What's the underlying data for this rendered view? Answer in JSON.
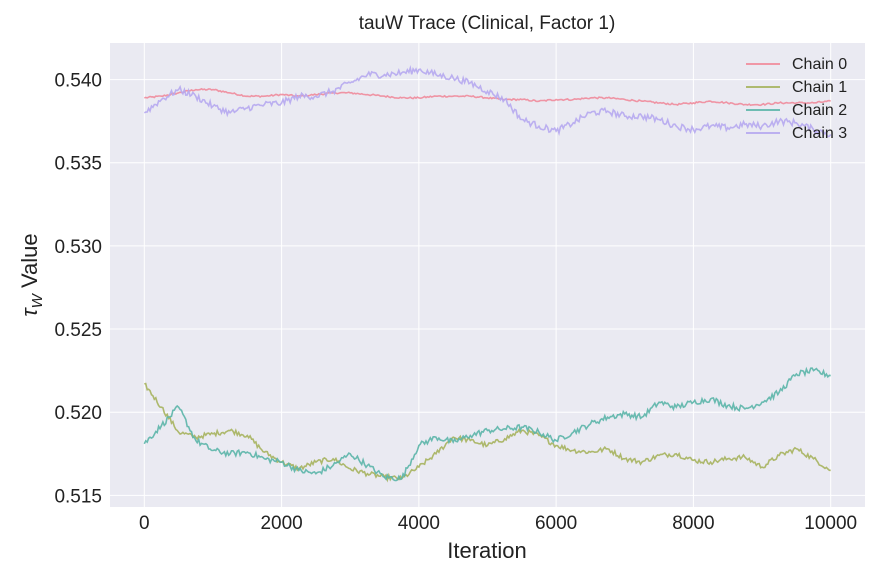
{
  "chart_data": {
    "type": "line",
    "title": "tauW Trace (Clinical, Factor 1)",
    "xlabel": "Iteration",
    "ylabel_symbol": "τ",
    "ylabel_subscript": "W",
    "ylabel_text": " Value",
    "xlim": [
      -500,
      10500
    ],
    "ylim": [
      0.5143,
      0.5422
    ],
    "xticks": [
      0,
      2000,
      4000,
      6000,
      8000,
      10000
    ],
    "xtick_labels": [
      "0",
      "2000",
      "4000",
      "6000",
      "8000",
      "10000"
    ],
    "yticks": [
      0.515,
      0.52,
      0.525,
      0.53,
      0.535,
      0.54
    ],
    "ytick_labels": [
      "0.515",
      "0.520",
      "0.525",
      "0.530",
      "0.535",
      "0.540"
    ],
    "grid": true,
    "legend_position": "top-right",
    "background": "#eaeaf2",
    "series": [
      {
        "name": "Chain 0",
        "color": "#f08b9b",
        "x": [
          0,
          250,
          500,
          750,
          1000,
          1250,
          1500,
          1750,
          2000,
          2250,
          2500,
          2750,
          3000,
          3250,
          3500,
          3750,
          4000,
          4250,
          4500,
          4750,
          5000,
          5250,
          5500,
          5750,
          6000,
          6250,
          6500,
          6750,
          7000,
          7250,
          7500,
          7750,
          8000,
          8250,
          8500,
          8750,
          9000,
          9250,
          9500,
          9750,
          10000
        ],
        "values": [
          0.5389,
          0.539,
          0.5392,
          0.5394,
          0.5394,
          0.5392,
          0.539,
          0.539,
          0.5391,
          0.539,
          0.5391,
          0.5392,
          0.5392,
          0.5391,
          0.539,
          0.5389,
          0.5389,
          0.539,
          0.539,
          0.539,
          0.5389,
          0.5388,
          0.5388,
          0.5387,
          0.5388,
          0.5388,
          0.5389,
          0.5389,
          0.5388,
          0.5387,
          0.5386,
          0.5385,
          0.5386,
          0.5387,
          0.5386,
          0.5385,
          0.5385,
          0.5386,
          0.5386,
          0.5386,
          0.5387
        ]
      },
      {
        "name": "Chain 1",
        "color": "#a6b35d",
        "x": [
          0,
          250,
          500,
          750,
          1000,
          1250,
          1500,
          1750,
          2000,
          2250,
          2500,
          2750,
          3000,
          3250,
          3500,
          3750,
          4000,
          4250,
          4500,
          4750,
          5000,
          5250,
          5500,
          5750,
          6000,
          6250,
          6500,
          6750,
          7000,
          7250,
          7500,
          7750,
          8000,
          8250,
          8500,
          8750,
          9000,
          9250,
          9500,
          9750,
          10000
        ],
        "values": [
          0.5217,
          0.5203,
          0.5188,
          0.5185,
          0.5187,
          0.5189,
          0.5186,
          0.5176,
          0.517,
          0.5166,
          0.517,
          0.5172,
          0.5166,
          0.5163,
          0.5161,
          0.516,
          0.5167,
          0.5175,
          0.5185,
          0.5183,
          0.518,
          0.5184,
          0.5189,
          0.5186,
          0.518,
          0.5177,
          0.5176,
          0.5178,
          0.5172,
          0.517,
          0.5174,
          0.5175,
          0.5171,
          0.517,
          0.5172,
          0.5173,
          0.5167,
          0.5174,
          0.5178,
          0.5172,
          0.5165
        ]
      },
      {
        "name": "Chain 2",
        "color": "#5bb5a8",
        "x": [
          0,
          250,
          500,
          750,
          1000,
          1250,
          1500,
          1750,
          2000,
          2250,
          2500,
          2750,
          3000,
          3250,
          3500,
          3750,
          4000,
          4250,
          4500,
          4750,
          5000,
          5250,
          5500,
          5750,
          6000,
          6250,
          6500,
          6750,
          7000,
          7250,
          7500,
          7750,
          8000,
          8250,
          8500,
          8750,
          9000,
          9250,
          9500,
          9750,
          10000
        ],
        "values": [
          0.5181,
          0.5192,
          0.5203,
          0.5183,
          0.5177,
          0.5175,
          0.5176,
          0.5172,
          0.517,
          0.5165,
          0.5163,
          0.5168,
          0.5175,
          0.5168,
          0.5161,
          0.516,
          0.518,
          0.5185,
          0.5182,
          0.5186,
          0.5189,
          0.519,
          0.5191,
          0.5188,
          0.5183,
          0.5188,
          0.5193,
          0.5197,
          0.5199,
          0.5197,
          0.5206,
          0.5203,
          0.5206,
          0.5208,
          0.5204,
          0.5202,
          0.5206,
          0.5212,
          0.5223,
          0.5225,
          0.5222
        ]
      },
      {
        "name": "Chain 3",
        "color": "#b6a8f0",
        "x": [
          0,
          250,
          500,
          750,
          1000,
          1250,
          1500,
          1750,
          2000,
          2250,
          2500,
          2750,
          3000,
          3250,
          3500,
          3750,
          4000,
          4250,
          4500,
          4750,
          5000,
          5250,
          5500,
          5750,
          6000,
          6250,
          6500,
          6750,
          7000,
          7250,
          7500,
          7750,
          8000,
          8250,
          8500,
          8750,
          9000,
          9250,
          9500,
          9750,
          10000
        ],
        "values": [
          0.538,
          0.5388,
          0.5394,
          0.539,
          0.5384,
          0.538,
          0.5383,
          0.5385,
          0.5386,
          0.539,
          0.539,
          0.5393,
          0.5398,
          0.5403,
          0.5403,
          0.5404,
          0.5406,
          0.5403,
          0.5401,
          0.5398,
          0.5393,
          0.5388,
          0.5376,
          0.5372,
          0.5369,
          0.5374,
          0.538,
          0.5381,
          0.5378,
          0.5378,
          0.5376,
          0.5372,
          0.537,
          0.5372,
          0.5371,
          0.5373,
          0.5372,
          0.5375,
          0.5374,
          0.537,
          0.5367
        ]
      }
    ]
  }
}
